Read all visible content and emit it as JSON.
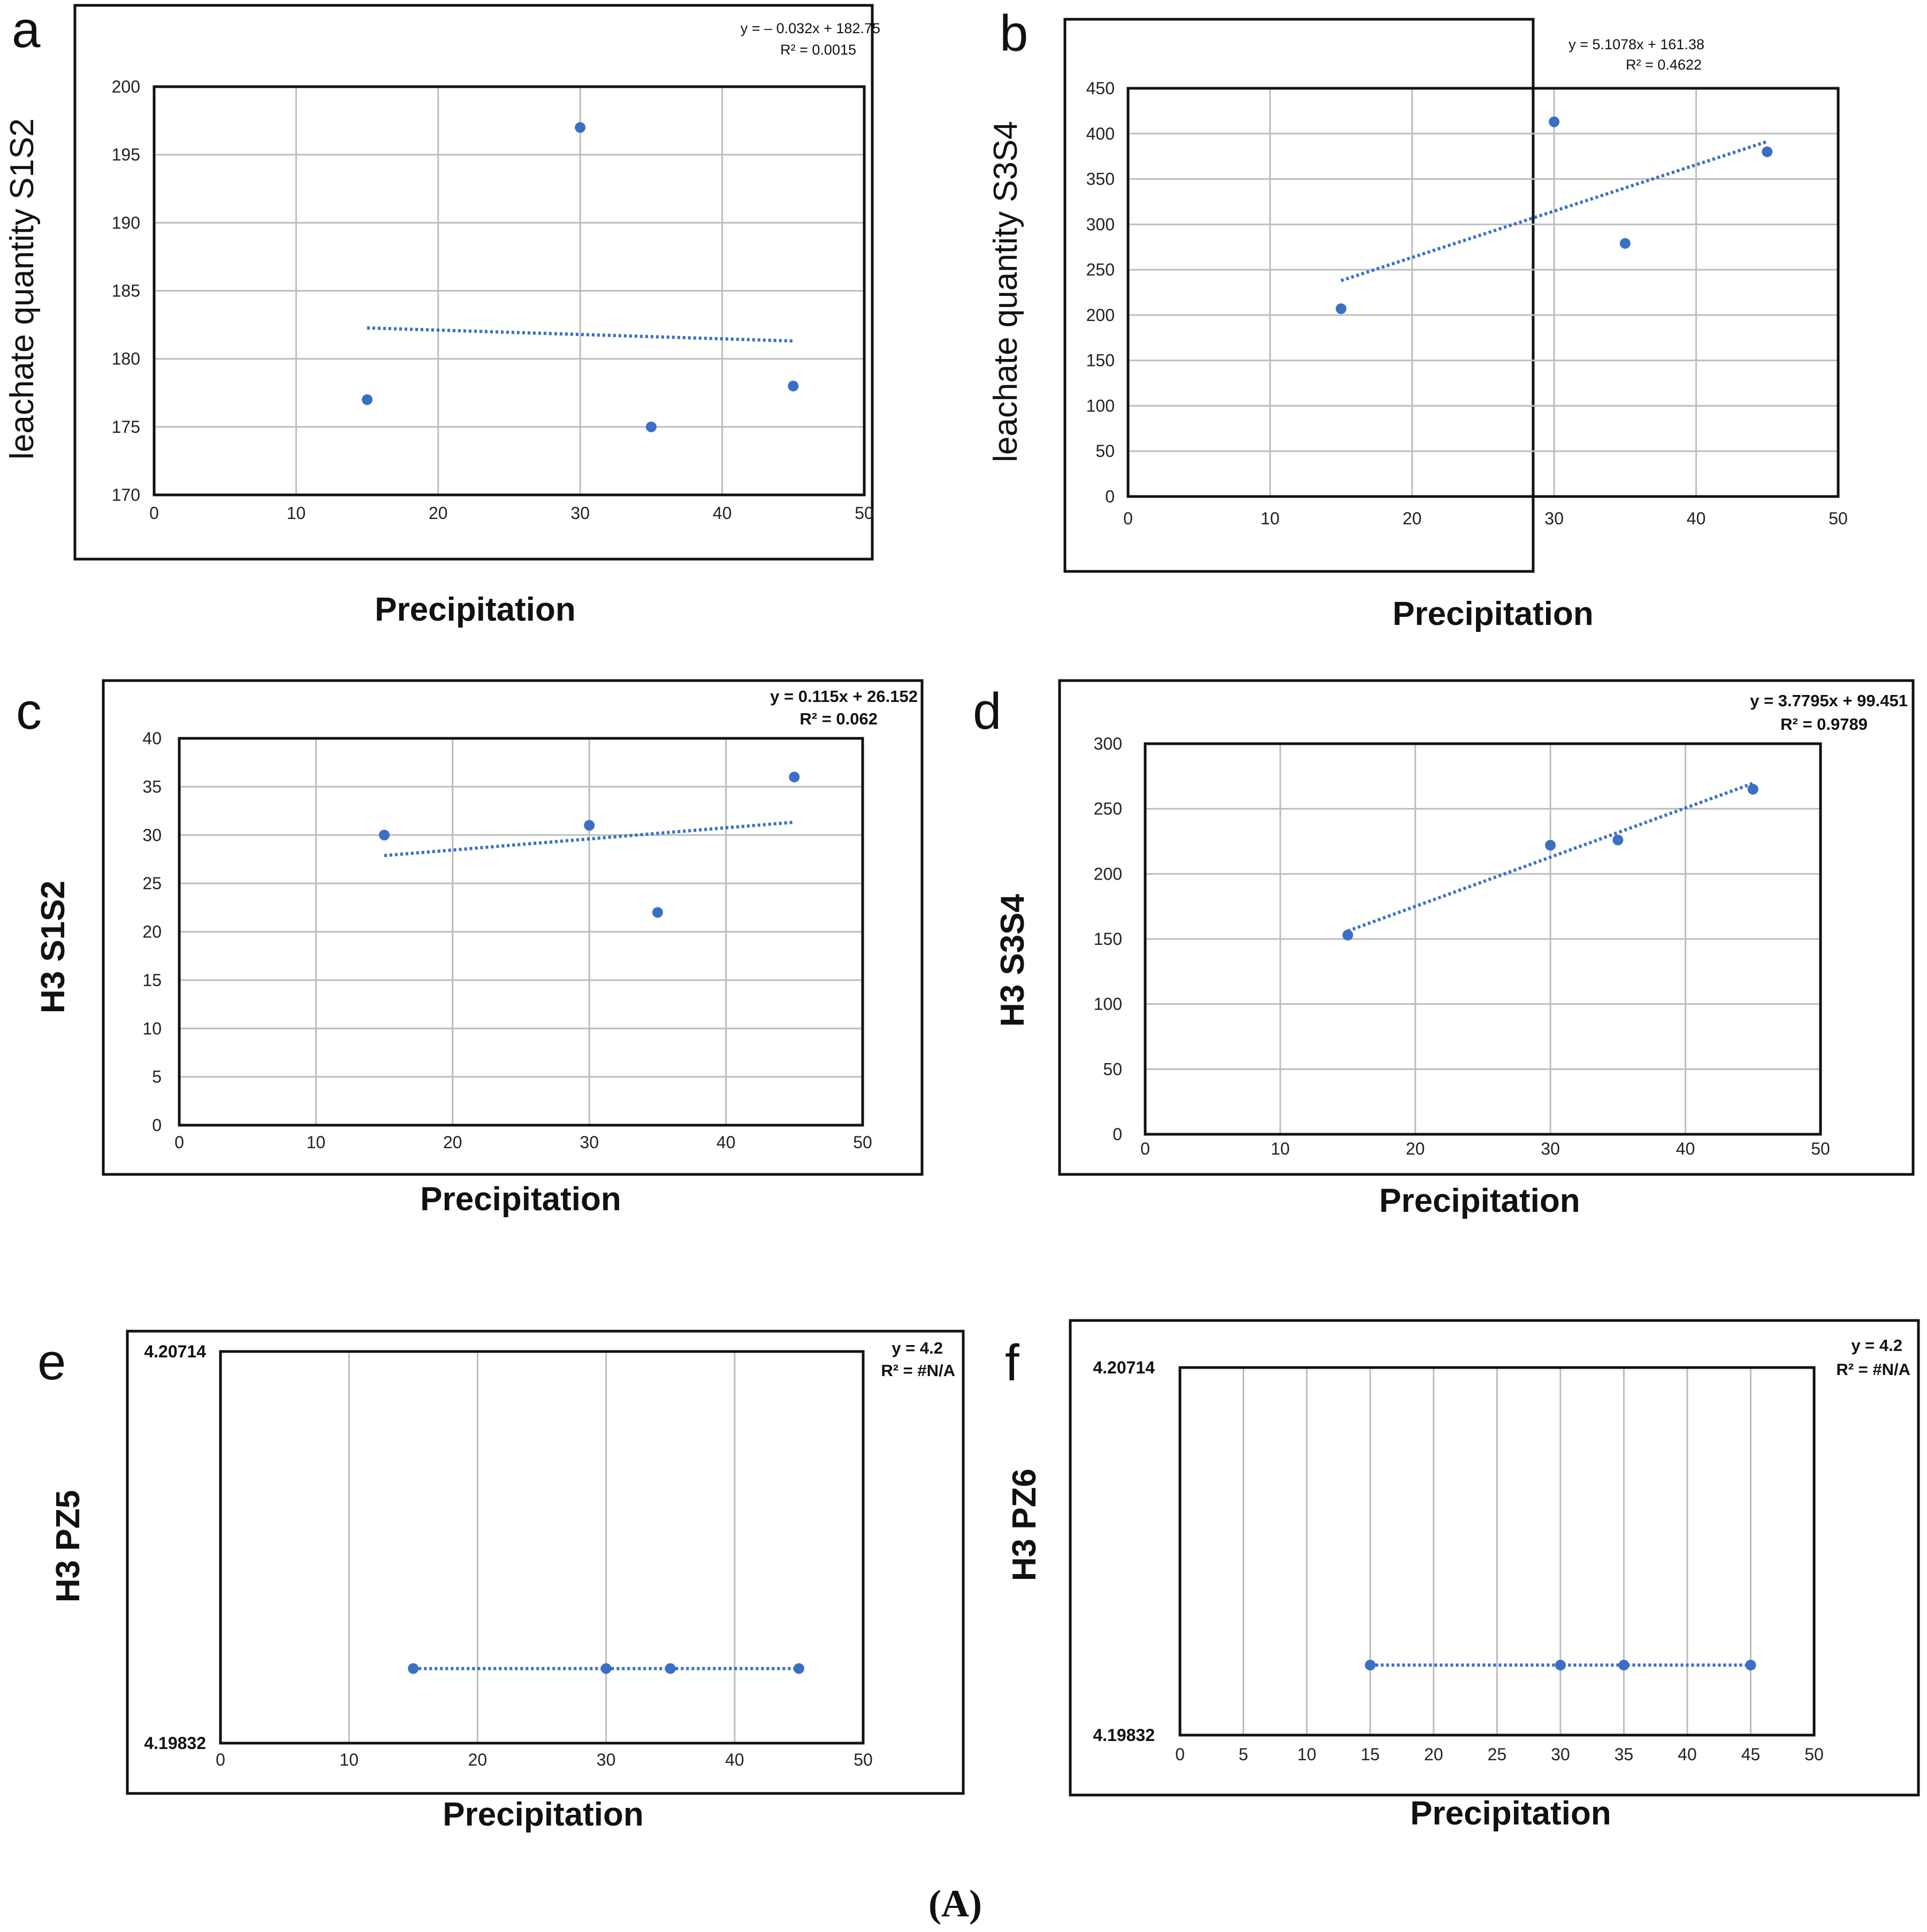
{
  "figure_caption": "(A)",
  "chart_data": [
    {
      "panel": "a",
      "type": "scatter",
      "ylabel": "leachate quantity S1S2",
      "xlabel": "Precipitation",
      "xlim": [
        0,
        50
      ],
      "ylim": [
        170,
        200
      ],
      "xticks": [
        "0",
        "10",
        "20",
        "30",
        "40",
        "50"
      ],
      "yticks": [
        "170",
        "175",
        "180",
        "185",
        "190",
        "195",
        "200"
      ],
      "points": [
        {
          "x": 15,
          "y": 177
        },
        {
          "x": 30,
          "y": 197
        },
        {
          "x": 35,
          "y": 175
        },
        {
          "x": 45,
          "y": 178
        }
      ],
      "trendline": {
        "slope": -0.032,
        "intercept": 182.75,
        "x_from": 15,
        "x_to": 45
      },
      "equation": "y = – 0.032x + 182.75",
      "r2": "R² = 0.0015",
      "grid": true,
      "marker_color": "#3a6fc4"
    },
    {
      "panel": "b",
      "type": "scatter",
      "ylabel": "leachate quantity S3S4",
      "xlabel": "Precipitation",
      "xlim": [
        0,
        50
      ],
      "ylim": [
        0,
        450
      ],
      "xticks": [
        "0",
        "10",
        "20",
        "30",
        "40",
        "50"
      ],
      "yticks": [
        "0",
        "50",
        "100",
        "150",
        "200",
        "250",
        "300",
        "350",
        "400",
        "450"
      ],
      "points": [
        {
          "x": 15,
          "y": 207
        },
        {
          "x": 30,
          "y": 413
        },
        {
          "x": 35,
          "y": 279
        },
        {
          "x": 45,
          "y": 380
        }
      ],
      "trendline": {
        "slope": 5.1078,
        "intercept": 161.38,
        "x_from": 15,
        "x_to": 45
      },
      "equation": "y = 5.1078x + 161.38",
      "r2": "R² = 0.4622",
      "grid": true,
      "marker_color": "#3a6fc4"
    },
    {
      "panel": "c",
      "type": "scatter",
      "ylabel": "H3 S1S2",
      "xlabel": "Precipitation",
      "xlim": [
        0,
        50
      ],
      "ylim": [
        0,
        40
      ],
      "xticks": [
        "0",
        "10",
        "20",
        "30",
        "40",
        "50"
      ],
      "yticks": [
        "0",
        "5",
        "10",
        "15",
        "20",
        "25",
        "30",
        "35",
        "40"
      ],
      "points": [
        {
          "x": 15,
          "y": 30
        },
        {
          "x": 30,
          "y": 31
        },
        {
          "x": 35,
          "y": 22
        },
        {
          "x": 45,
          "y": 36
        }
      ],
      "trendline": {
        "slope": 0.115,
        "intercept": 26.152,
        "x_from": 15,
        "x_to": 45
      },
      "equation": "y =  0.115x + 26.152",
      "r2": "R² = 0.062",
      "grid": true,
      "marker_color": "#3a6fc4"
    },
    {
      "panel": "d",
      "type": "scatter",
      "ylabel": "H3 S3S4",
      "xlabel": "Precipitation",
      "xlim": [
        0,
        50
      ],
      "ylim": [
        0,
        300
      ],
      "xticks": [
        "0",
        "10",
        "20",
        "30",
        "40",
        "50"
      ],
      "yticks": [
        "0",
        "50",
        "100",
        "150",
        "200",
        "250",
        "300"
      ],
      "points": [
        {
          "x": 15,
          "y": 153
        },
        {
          "x": 30,
          "y": 222
        },
        {
          "x": 35,
          "y": 226
        },
        {
          "x": 45,
          "y": 265
        }
      ],
      "trendline": {
        "slope": 3.7795,
        "intercept": 99.451,
        "x_from": 15,
        "x_to": 45
      },
      "equation": "y = 3.7795x + 99.451",
      "r2": "R² = 0.9789",
      "grid": true,
      "marker_color": "#3a6fc4"
    },
    {
      "panel": "e",
      "type": "scatter",
      "ylabel": "H3 PZ5",
      "xlabel": "Precipitation",
      "xlim": [
        0,
        50
      ],
      "ylim": [
        4.19832,
        4.20714
      ],
      "xticks": [
        "0",
        "10",
        "20",
        "30",
        "40",
        "50"
      ],
      "yticks": [
        "4.19832",
        "4.20714"
      ],
      "points": [
        {
          "x": 15,
          "y": 4.2
        },
        {
          "x": 30,
          "y": 4.2
        },
        {
          "x": 35,
          "y": 4.2
        },
        {
          "x": 45,
          "y": 4.2
        }
      ],
      "trendline": {
        "slope": 0,
        "intercept": 4.2,
        "x_from": 15,
        "x_to": 45
      },
      "equation": "y = 4.2",
      "r2": "R² = #N/A",
      "grid": true,
      "marker_color": "#3a6fc4"
    },
    {
      "panel": "f",
      "type": "scatter",
      "ylabel": "H3 PZ6",
      "xlabel": "Precipitation",
      "xlim": [
        0,
        50
      ],
      "ylim": [
        4.19832,
        4.20714
      ],
      "xticks": [
        "0",
        "5",
        "10",
        "15",
        "20",
        "25",
        "30",
        "35",
        "40",
        "45",
        "50"
      ],
      "yticks": [
        "4.19832",
        "4.20714"
      ],
      "points": [
        {
          "x": 15,
          "y": 4.2
        },
        {
          "x": 30,
          "y": 4.2
        },
        {
          "x": 35,
          "y": 4.2
        },
        {
          "x": 45,
          "y": 4.2
        }
      ],
      "trendline": {
        "slope": 0,
        "intercept": 4.2,
        "x_from": 15,
        "x_to": 45
      },
      "equation": "y = 4.2",
      "r2": "R² = #N/A",
      "grid": true,
      "marker_color": "#3a6fc4"
    }
  ]
}
